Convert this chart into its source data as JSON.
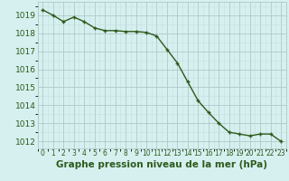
{
  "x": [
    0,
    1,
    2,
    3,
    4,
    5,
    6,
    7,
    8,
    9,
    10,
    11,
    12,
    13,
    14,
    15,
    16,
    17,
    18,
    19,
    20,
    21,
    22,
    23
  ],
  "y": [
    1019.3,
    1019.0,
    1018.65,
    1018.9,
    1018.65,
    1018.3,
    1018.15,
    1018.15,
    1018.1,
    1018.1,
    1018.05,
    1017.85,
    1017.1,
    1016.35,
    1015.3,
    1014.25,
    1013.6,
    1013.0,
    1012.5,
    1012.4,
    1012.3,
    1012.4,
    1012.4,
    1012.0
  ],
  "line_color": "#2d5a1b",
  "marker_color": "#2d5a1b",
  "bg_color": "#d6f0f0",
  "grid_major_color": "#b0c8c8",
  "grid_minor_color": "#c8dede",
  "xlabel": "Graphe pression niveau de la mer (hPa)",
  "xlabel_color": "#2d5a1b",
  "ylabel_ticks": [
    1012,
    1013,
    1014,
    1015,
    1016,
    1017,
    1018,
    1019
  ],
  "ylim": [
    1011.6,
    1019.75
  ],
  "xlim": [
    -0.5,
    23.5
  ],
  "xtick_labels": [
    "0",
    "1",
    "2",
    "3",
    "4",
    "5",
    "6",
    "7",
    "8",
    "9",
    "10",
    "11",
    "12",
    "13",
    "14",
    "15",
    "16",
    "17",
    "18",
    "19",
    "20",
    "21",
    "22",
    "23"
  ],
  "xlabel_fontsize": 7.5,
  "ytick_fontsize": 6.5,
  "xtick_fontsize": 5.5
}
